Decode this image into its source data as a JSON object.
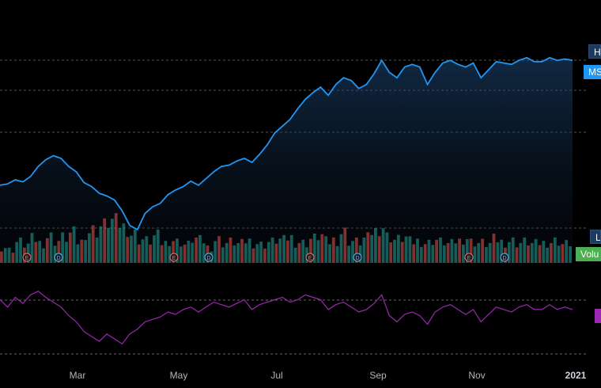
{
  "price_tags": {
    "high": "H",
    "symbol": "MS",
    "low": "L",
    "volume": "Volu"
  },
  "x_axis": {
    "labels": [
      "Mar",
      "May",
      "Jul",
      "Sep",
      "Nov",
      "2021"
    ]
  },
  "colors": {
    "line": "#2196f3",
    "volume_up": "#26a69a",
    "volume_down": "#ef5350",
    "rsi": "#9c27b0",
    "grid": "#555555",
    "tag_dark": "#1e3a5f"
  },
  "event_markers": [
    "E",
    "D",
    "E",
    "D",
    "E",
    "D",
    "E",
    "D"
  ],
  "chart_data": {
    "type": "line",
    "series": [
      {
        "values": [
          212,
          214,
          220,
          217,
          225,
          240,
          250,
          256,
          252,
          240,
          232,
          216,
          210,
          200,
          196,
          190,
          174,
          152,
          146,
          170,
          180,
          185,
          198,
          205,
          210,
          218,
          212,
          222,
          232,
          240,
          242,
          248,
          252,
          246,
          258,
          272,
          290,
          300,
          310,
          326,
          340,
          350,
          358,
          346,
          362,
          372,
          368,
          356,
          362,
          378,
          398,
          380,
          372,
          388,
          392,
          388,
          362,
          380,
          394,
          398,
          392,
          388,
          394,
          372,
          384,
          396,
          394,
          392,
          398,
          402,
          396,
          396,
          402,
          398,
          400,
          398
        ]
      }
    ],
    "volume": [
      30,
      25,
      40,
      35,
      45,
      38,
      50,
      42,
      48,
      55,
      40,
      60,
      62,
      70,
      80,
      75,
      68,
      55,
      45,
      42,
      50,
      38,
      44,
      40,
      35,
      46,
      42,
      30,
      44,
      38,
      40,
      36,
      42,
      38,
      35,
      40,
      44,
      42,
      48,
      40,
      38,
      46,
      52,
      40,
      44,
      58,
      42,
      40,
      46,
      60,
      70,
      50,
      44,
      48,
      40,
      42,
      38,
      44,
      40,
      36,
      42,
      48,
      40,
      38,
      36,
      44,
      40,
      42,
      38,
      40,
      36,
      38,
      40,
      42,
      36,
      38
    ],
    "rsi": [
      58,
      52,
      60,
      55,
      62,
      65,
      60,
      56,
      52,
      45,
      40,
      32,
      28,
      24,
      30,
      26,
      22,
      30,
      34,
      40,
      42,
      44,
      48,
      46,
      50,
      52,
      48,
      52,
      56,
      54,
      52,
      55,
      58,
      50,
      54,
      56,
      58,
      60,
      56,
      58,
      62,
      60,
      58,
      50,
      54,
      56,
      52,
      48,
      50,
      55,
      62,
      45,
      40,
      46,
      48,
      45,
      38,
      48,
      52,
      54,
      50,
      46,
      50,
      40,
      46,
      52,
      50,
      48,
      52,
      54,
      50,
      50,
      54,
      50,
      52,
      50
    ]
  }
}
